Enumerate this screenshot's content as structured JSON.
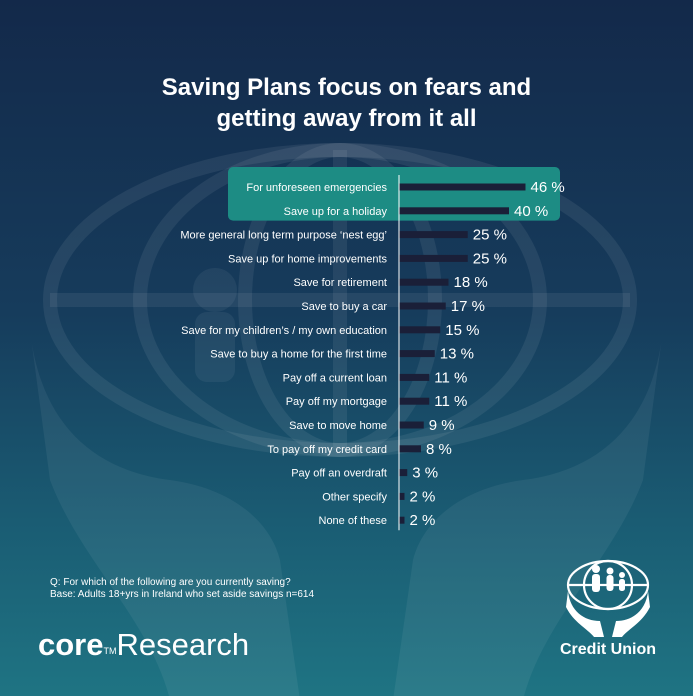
{
  "title": {
    "line1": "Saving Plans focus on fears and",
    "line2": "getting away from it all"
  },
  "chart_data": {
    "type": "bar",
    "orientation": "horizontal",
    "title": "Saving Plans focus on fears and getting away from it all",
    "categories": [
      "For unforeseen emergencies",
      "Save up for a holiday",
      "More general long term purpose ‘nest egg’",
      "Save up for home improvements",
      "Save for retirement",
      "Save to buy a car",
      "Save for my children’s / my own education",
      "Save to buy a home for the first time",
      "Pay off a current loan",
      "Pay off my mortgage",
      "Save to move home",
      "To pay off my credit card",
      "Pay off an overdraft",
      "Other specify",
      "None of these"
    ],
    "values": [
      46,
      40,
      25,
      25,
      18,
      17,
      15,
      13,
      11,
      11,
      9,
      8,
      3,
      2,
      2
    ],
    "value_labels": [
      "46 %",
      "40 %",
      "25 %",
      "25 %",
      "18 %",
      "17 %",
      "15 %",
      "13 %",
      "11 %",
      "11 %",
      "9 %",
      "8 %",
      "3 %",
      "2 %",
      "2 %"
    ],
    "highlighted_count": 2,
    "xlim": [
      0,
      50
    ],
    "xlabel": "",
    "ylabel": "",
    "colors": {
      "bar": "#1a1f38",
      "highlight_band": "#1d8c84",
      "axis": "#ffffff",
      "text": "#ffffff"
    }
  },
  "footnote": {
    "question": "Q: For which of the following are you currently saving?",
    "base": "Base: Adults 18+yrs in Ireland who set aside savings n=614"
  },
  "logos": {
    "core_word": "core",
    "core_tm": "TM",
    "research_word": "Research",
    "credit_union": "Credit Union"
  }
}
